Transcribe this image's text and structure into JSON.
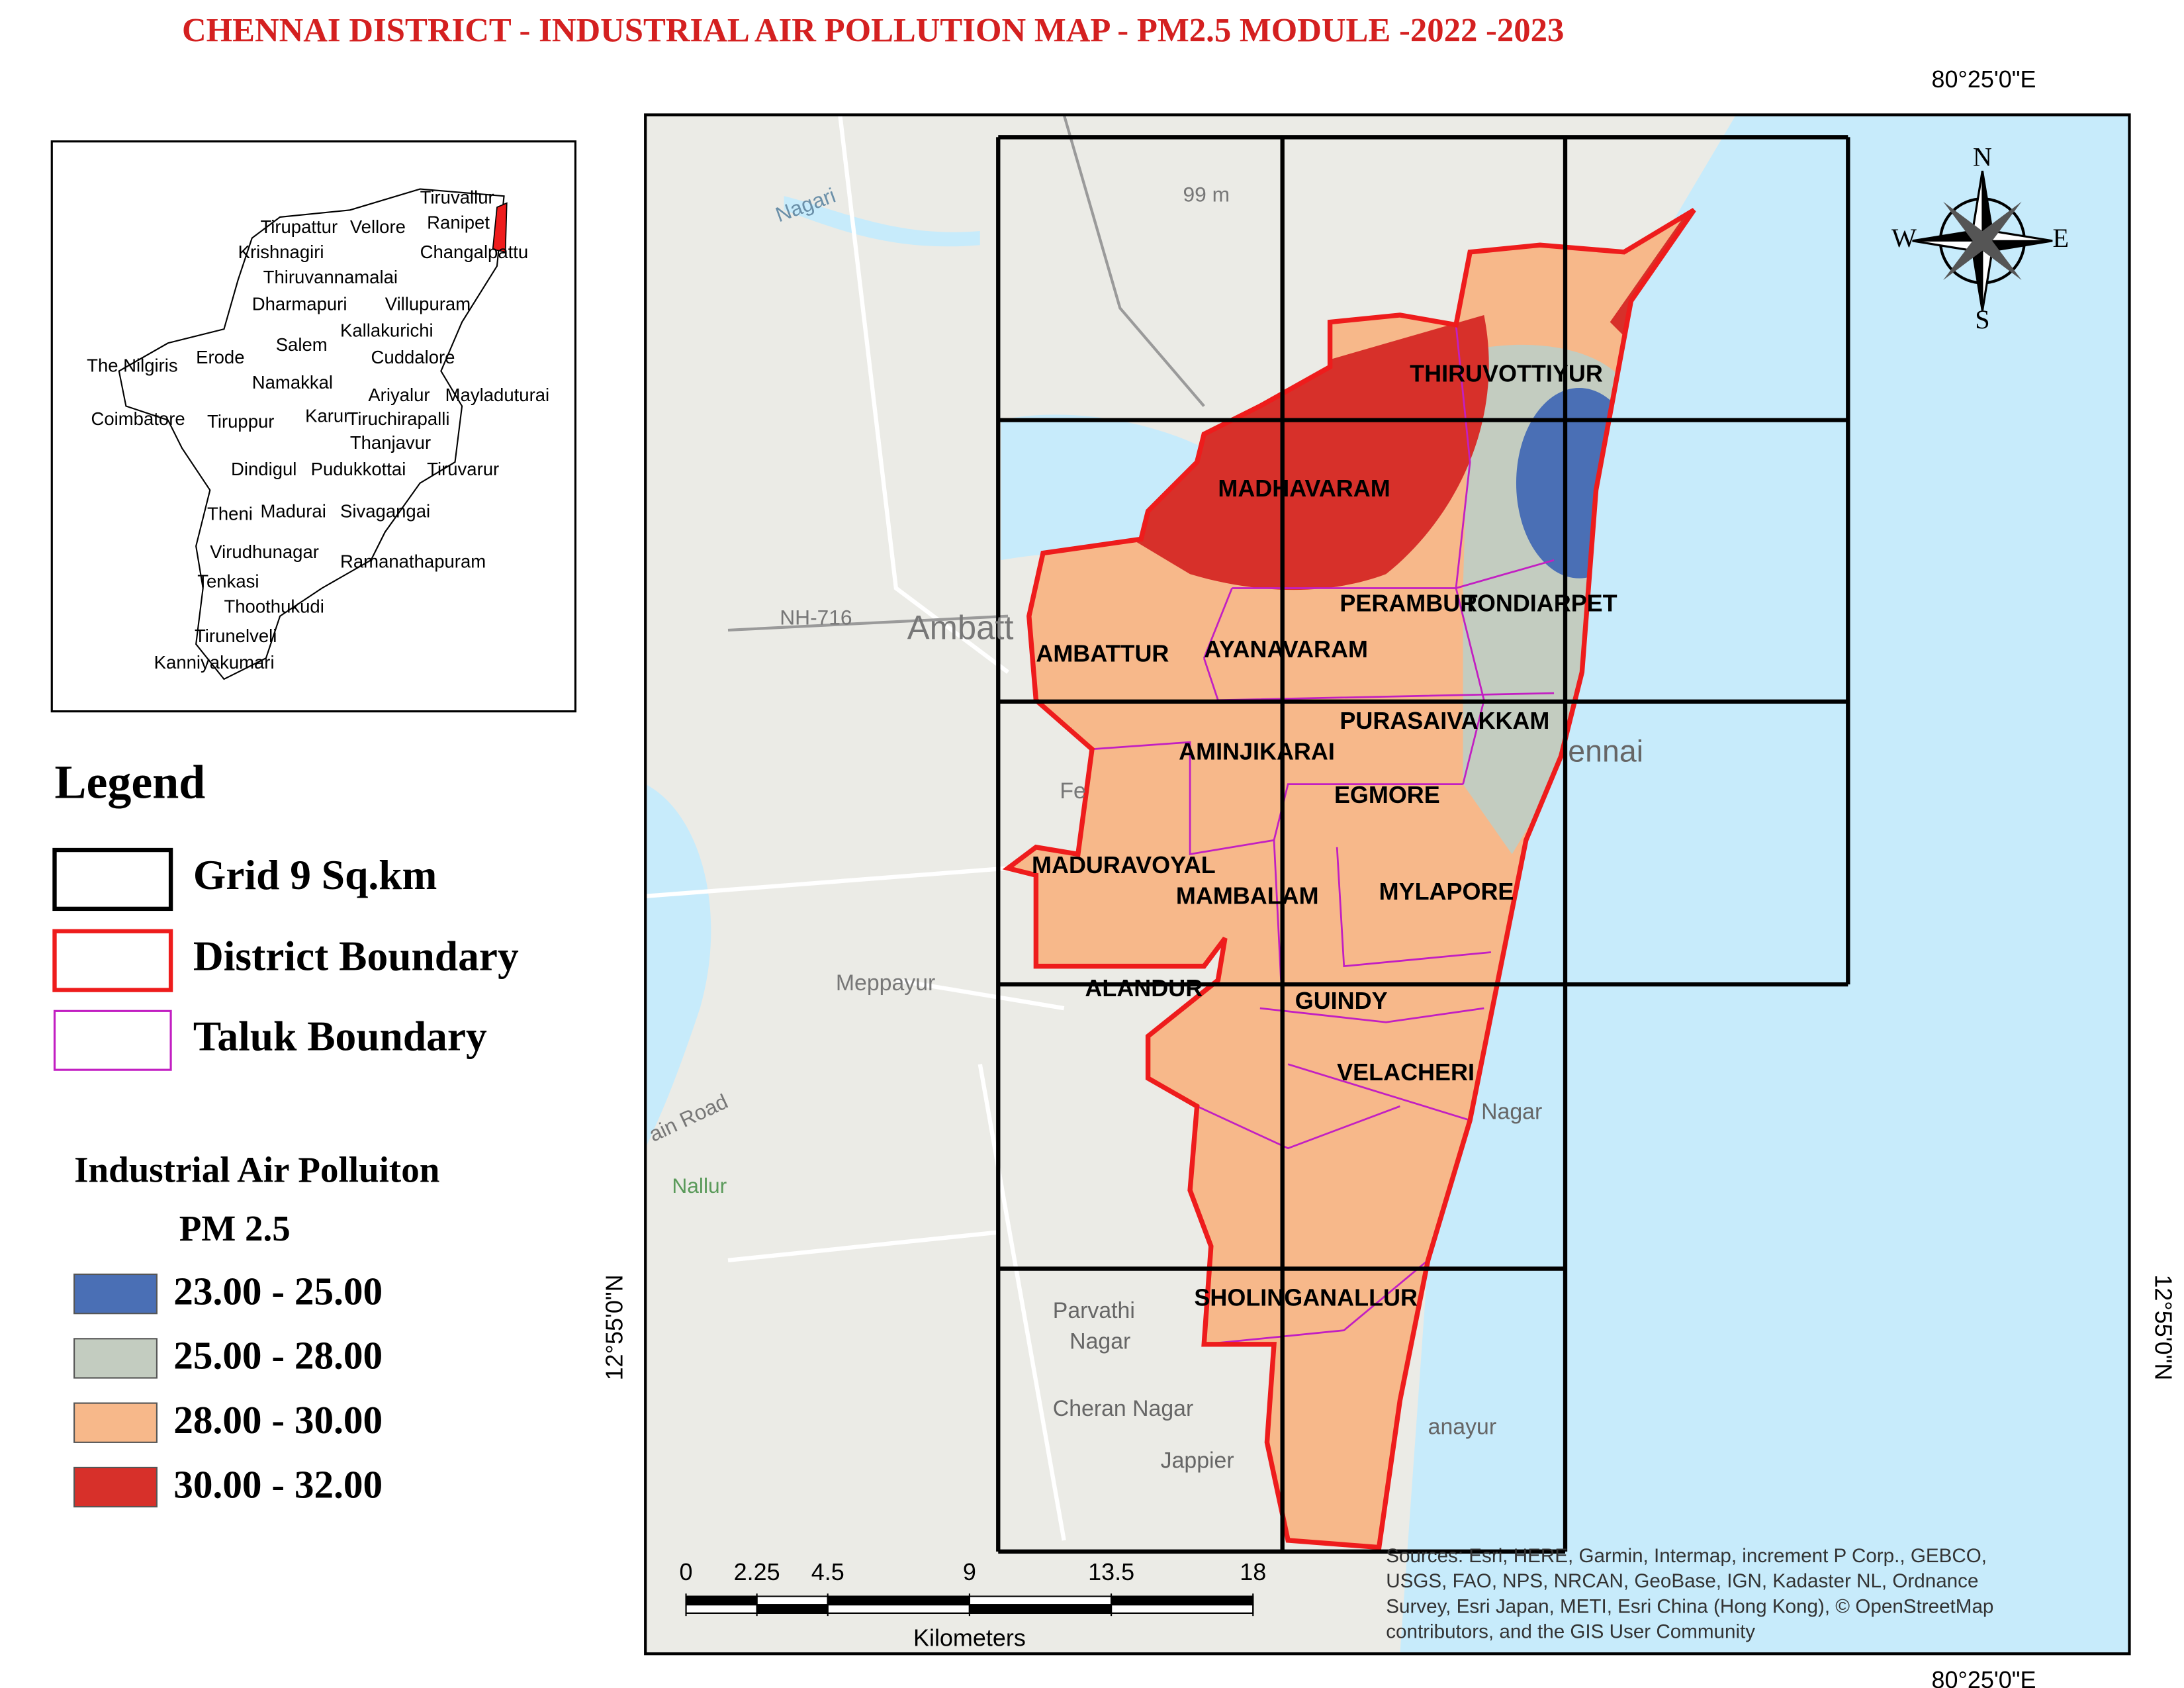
{
  "title": "CHENNAI DISTRICT -  INDUSTRIAL AIR POLLUTION MAP - PM2.5 MODULE -2022 -2023",
  "coordinates": {
    "top": "80°25'0\"E",
    "bottom": "80°25'0\"E",
    "left": "12°55'0\"N",
    "right": "12°55'0\"N"
  },
  "inset_districts": [
    "Tiruvallur",
    "Tirupattur",
    "Vellore",
    "Ranipet",
    "Krishnagiri",
    "Changalpattu",
    "Thiruvannamalai",
    "Dharmapuri",
    "Villupuram",
    "Kallakurichi",
    "Salem",
    "Erode",
    "Cuddalore",
    "The Nilgiris",
    "Namakkal",
    "Ariyalur",
    "Mayladuturai",
    "Coimbatore",
    "Tiruppur",
    "Karur",
    "Tiruchirapalli",
    "Thanjavur",
    "Dindigul",
    "Pudukkottai",
    "Tiruvarur",
    "Theni",
    "Madurai",
    "Sivagangai",
    "Virudhunagar",
    "Ramanathapuram",
    "Tenkasi",
    "Thoothukudi",
    "Tirunelveli",
    "Kanniyakumari"
  ],
  "legend": {
    "title": "Legend",
    "items": [
      {
        "label": "Grid 9 Sq.km",
        "color": "#000000"
      },
      {
        "label": "District Boundary",
        "color": "#ee1c1c"
      },
      {
        "label": "Taluk Boundary",
        "color": "#c21fc2"
      }
    ]
  },
  "pollution_legend": {
    "title": "Industrial Air Polluiton",
    "subtitle": "PM 2.5",
    "classes": [
      {
        "label": "23.00 - 25.00",
        "color": "#4a6fb5"
      },
      {
        "label": "25.00 - 28.00",
        "color": "#c3ccc0"
      },
      {
        "label": "28.00 - 30.00",
        "color": "#f7b88a"
      },
      {
        "label": "30.00 - 32.00",
        "color": "#d7302a"
      }
    ]
  },
  "taluks": [
    "THIRUVOTTIYUR",
    "MADHAVARAM",
    "PERAMBUR",
    "TONDIARPET",
    "AMBATTUR",
    "AYANAVARAM",
    "PURASAIVAKKAM",
    "AMINJIKARAI",
    "EGMORE",
    "MADURAVOYAL",
    "MAMBALAM",
    "MYLAPORE",
    "ALANDUR",
    "GUINDY",
    "VELACHERI",
    "SHOLINGANALLUR"
  ],
  "basemap_labels": [
    "Nagari",
    "99 m",
    "NH-716",
    "Ambatt",
    "Fe",
    "Meppayur",
    "ain Road",
    "Nallur",
    "Parvathi",
    "Nagar",
    "Cheran Nagar",
    "Jappier",
    "ennai",
    "Nagar",
    "anayur"
  ],
  "compass": [
    "N",
    "S",
    "W",
    "E"
  ],
  "scale_bar": {
    "ticks": [
      0,
      2.25,
      4.5,
      9,
      13.5,
      18
    ],
    "unit": "Kilometers"
  },
  "attribution": [
    "Sources: Esri, HERE, Garmin, Intermap, increment P Corp., GEBCO,",
    "USGS, FAO, NPS, NRCAN, GeoBase, IGN, Kadaster NL, Ordnance",
    "Survey, Esri Japan, METI, Esri China (Hong Kong), © OpenStreetMap",
    "contributors, and the GIS User Community"
  ]
}
